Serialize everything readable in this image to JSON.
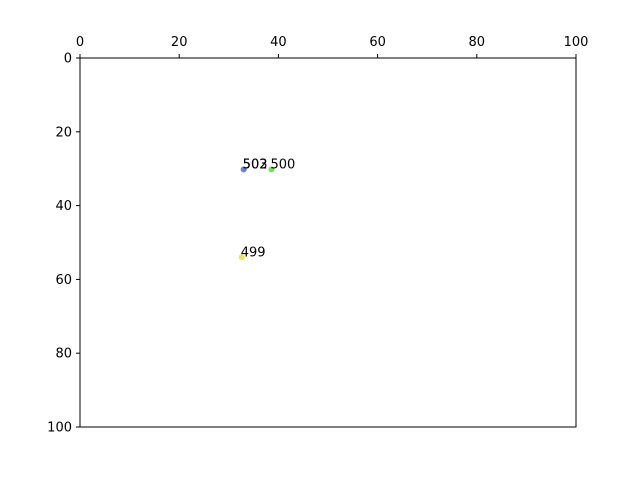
{
  "chart_data": {
    "type": "scatter",
    "title": "",
    "xlabel": "",
    "ylabel": "",
    "xlim": [
      0,
      100
    ],
    "ylim": [
      100,
      0
    ],
    "x_axis_position": "top",
    "y_axis_inverted": true,
    "grid": false,
    "legend": "none",
    "xticks": [
      "0",
      "20",
      "40",
      "60",
      "80",
      "100"
    ],
    "yticks": [
      "0",
      "20",
      "40",
      "60",
      "80",
      "100"
    ],
    "points": [
      {
        "label": "503",
        "x": 33.0,
        "y": 30.2,
        "color": "#6f82c8"
      },
      {
        "label": "502",
        "x": 33.0,
        "y": 30.2,
        "color": "#6f82c8"
      },
      {
        "label": "500",
        "x": 38.6,
        "y": 30.2,
        "color": "#66dd44"
      },
      {
        "label": "499",
        "x": 32.6,
        "y": 54.0,
        "color": "#e4e44a"
      }
    ]
  }
}
